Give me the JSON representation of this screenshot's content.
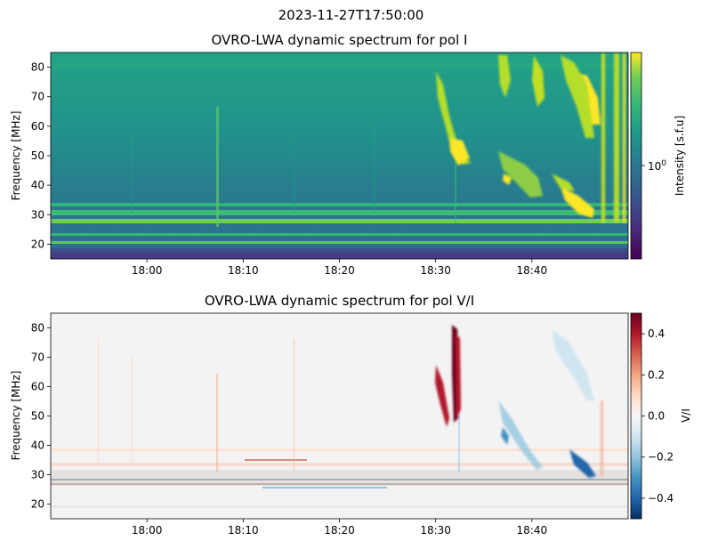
{
  "figure": {
    "suptitle": "2023-11-27T17:50:00"
  },
  "chart_data": [
    {
      "type": "heatmap",
      "title": "OVRO-LWA dynamic spectrum for pol I",
      "xlabel": "",
      "ylabel": "Frequency [MHz]",
      "xlim": [
        "17:50",
        "18:50"
      ],
      "ylim": [
        15,
        85
      ],
      "x_ticks": [
        "18:00",
        "18:10",
        "18:20",
        "18:30",
        "18:40"
      ],
      "y_ticks": [
        20,
        30,
        40,
        50,
        60,
        70,
        80
      ],
      "colormap": "viridis",
      "colorbar": {
        "label": "Intensity [s.f.u]",
        "scale": "log",
        "tick_labels": [
          "10^0"
        ]
      },
      "features": [
        {
          "kind": "burst",
          "x_start": "18:29",
          "x_end": "18:33",
          "freq_range_mhz": [
            45,
            85
          ]
        },
        {
          "kind": "burst",
          "x_start": "18:36",
          "x_end": "18:43",
          "freq_range_mhz": [
            30,
            52
          ]
        },
        {
          "kind": "burst",
          "x_start": "18:43",
          "x_end": "18:50",
          "freq_range_mhz": [
            28,
            85
          ]
        }
      ]
    },
    {
      "type": "heatmap",
      "title": "OVRO-LWA dynamic spectrum for pol V/I",
      "xlabel": "",
      "ylabel": "Frequency [MHz]",
      "xlim": [
        "17:50",
        "18:50"
      ],
      "ylim": [
        15,
        85
      ],
      "x_ticks": [
        "18:00",
        "18:10",
        "18:20",
        "18:30",
        "18:40"
      ],
      "y_ticks": [
        20,
        30,
        40,
        50,
        60,
        70,
        80
      ],
      "colormap": "RdBu_r",
      "colorbar": {
        "label": "V/I",
        "range": [
          -0.5,
          0.5
        ],
        "ticks": [
          "0.4",
          "0.2",
          "0.0",
          "−0.2",
          "−0.4"
        ]
      },
      "features": [
        {
          "kind": "positive-polarized burst",
          "x_start": "18:30",
          "x_end": "18:33",
          "freq_range_mhz": [
            45,
            82
          ]
        },
        {
          "kind": "negative-polarized burst",
          "x_start": "18:36",
          "x_end": "18:49",
          "freq_range_mhz": [
            28,
            75
          ]
        }
      ]
    }
  ]
}
